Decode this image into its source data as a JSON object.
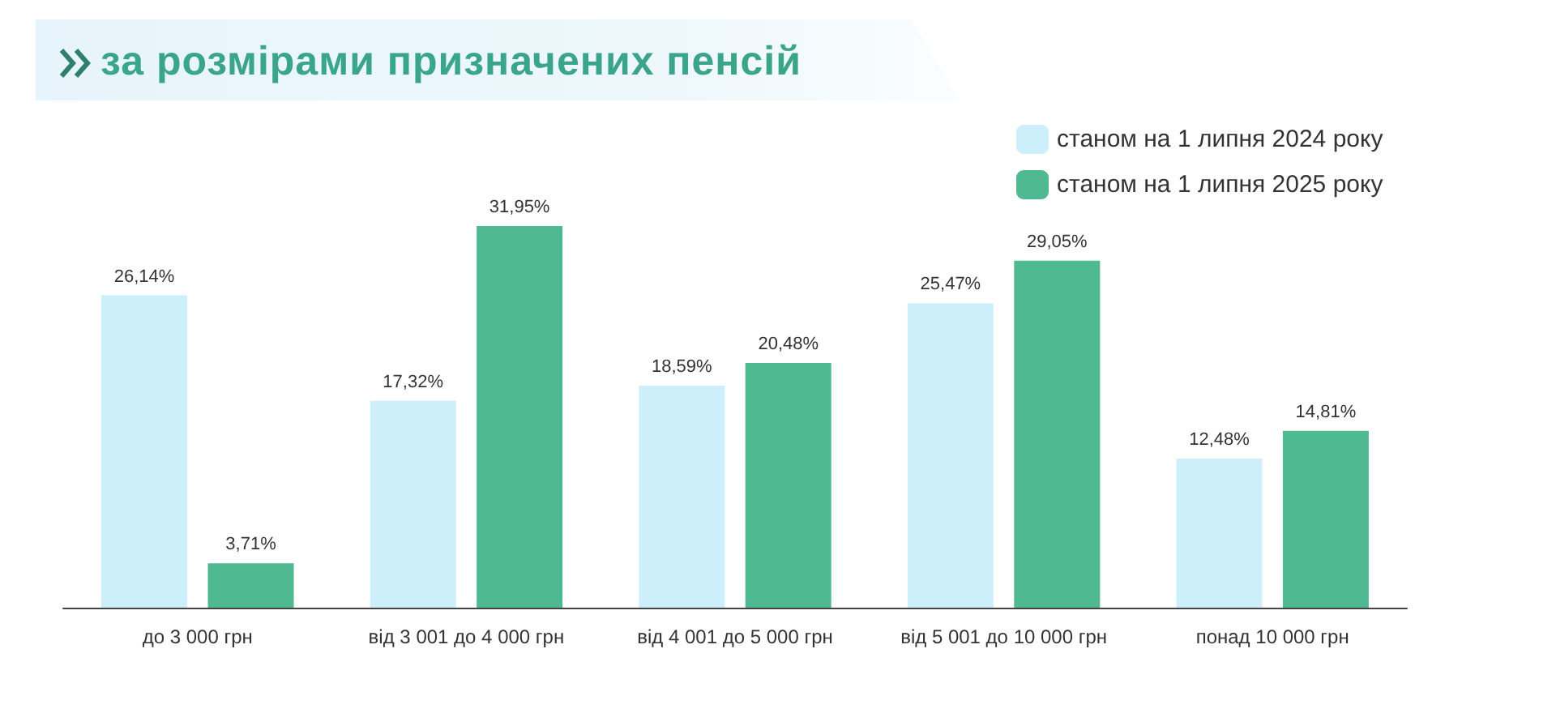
{
  "chart_data": {
    "type": "bar",
    "title": "за розмірами призначених пенсій",
    "categories": [
      "до 3 000 грн",
      "від 3 001 до 4 000 грн",
      "від 4 001 до 5 000 грн",
      "від 5 001 до 10 000 грн",
      "понад 10 000 грн"
    ],
    "legend": "top right",
    "series": [
      {
        "name": "станом на 1 липня 2024 року",
        "color": "#cdeefb",
        "values": [
          26.14,
          17.32,
          18.59,
          25.47,
          12.48
        ],
        "value_labels": [
          "26,14%",
          "17,32%",
          "18,59%",
          "25,47%",
          "12,48%"
        ]
      },
      {
        "name": "станом на 1 липня 2025 року",
        "color": "#4fba91",
        "values": [
          3.71,
          31.95,
          20.48,
          29.05,
          14.81
        ],
        "value_labels": [
          "3,71%",
          "31,95%",
          "20,48%",
          "29,05%",
          "14,81%"
        ]
      }
    ]
  }
}
